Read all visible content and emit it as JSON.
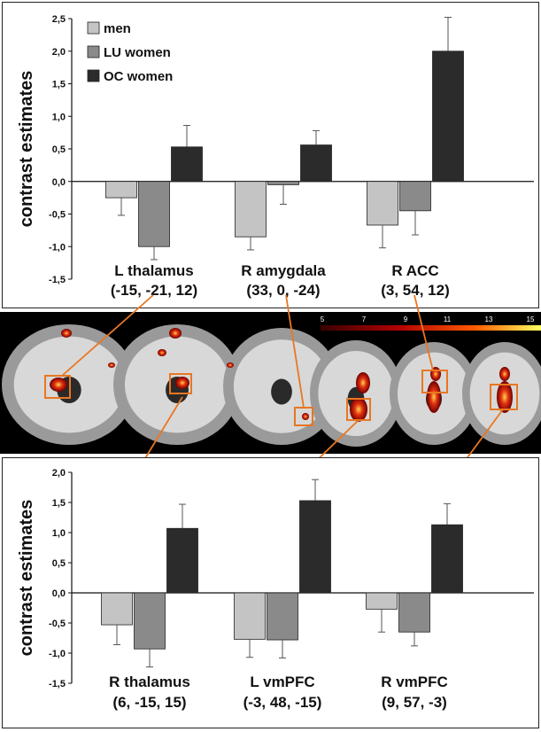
{
  "colors": {
    "men": "#c4c4c4",
    "lu_women": "#8a8a8a",
    "oc_women": "#2b2b2b",
    "highlight_box": "#e87722",
    "brain_background": "#000000"
  },
  "legend": [
    "men",
    "LU women",
    "OC women"
  ],
  "colorbar": {
    "ticks": [
      "5",
      "7",
      "9",
      "11",
      "13",
      "15"
    ]
  },
  "chart_data": [
    {
      "type": "bar",
      "ylabel": "contrast estimates",
      "ylim": [
        -1.5,
        2.5
      ],
      "yticks": [
        "2,5",
        "2,0",
        "1,5",
        "1,0",
        "0,5",
        "0,0",
        "-0,5",
        "-1,0",
        "-1,5"
      ],
      "ytick_values": [
        2.5,
        2.0,
        1.5,
        1.0,
        0.5,
        0.0,
        -0.5,
        -1.0,
        -1.5
      ],
      "categories": [
        "L thalamus",
        "R amygdala",
        "R ACC"
      ],
      "category_coords": [
        "(-15, -21, 12)",
        "(33, 0, -24)",
        "(3, 54, 12)"
      ],
      "series": [
        {
          "name": "men",
          "values": [
            -0.25,
            -0.85,
            -0.67
          ],
          "errors": [
            0.27,
            0.2,
            0.35
          ]
        },
        {
          "name": "LU women",
          "values": [
            -1.0,
            -0.05,
            -0.45
          ],
          "errors": [
            0.2,
            0.3,
            0.37
          ]
        },
        {
          "name": "OC women",
          "values": [
            0.53,
            0.56,
            2.0
          ],
          "errors": [
            0.33,
            0.22,
            0.52
          ]
        }
      ],
      "legend_position": "top-left"
    },
    {
      "type": "bar",
      "ylabel": "contrast estimates",
      "ylim": [
        -1.5,
        2.0
      ],
      "yticks": [
        "2,0",
        "1,5",
        "1,0",
        "0,5",
        "0,0",
        "-0,5",
        "-1,0",
        "-1,5"
      ],
      "ytick_values": [
        2.0,
        1.5,
        1.0,
        0.5,
        0.0,
        -0.5,
        -1.0,
        -1.5
      ],
      "categories": [
        "R thalamus",
        "L vmPFC",
        "R vmPFC"
      ],
      "category_coords": [
        "(6, -15, 15)",
        "(-3, 48, -15)",
        "(9, 57, -3)"
      ],
      "series": [
        {
          "name": "men",
          "values": [
            -0.53,
            -0.77,
            -0.27
          ],
          "errors": [
            0.33,
            0.3,
            0.38
          ]
        },
        {
          "name": "LU women",
          "values": [
            -0.93,
            -0.78,
            -0.65
          ],
          "errors": [
            0.3,
            0.3,
            0.23
          ]
        },
        {
          "name": "OC women",
          "values": [
            1.07,
            1.53,
            1.13
          ],
          "errors": [
            0.4,
            0.35,
            0.35
          ]
        }
      ]
    }
  ]
}
